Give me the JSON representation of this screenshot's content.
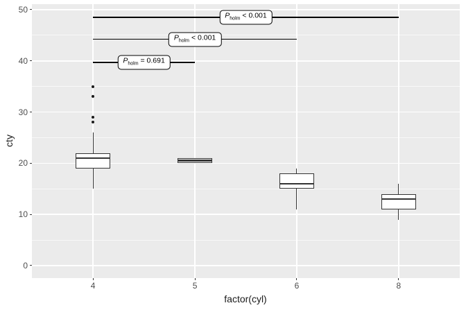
{
  "colors": {
    "page_bg": "#FFFFFF",
    "panel_bg": "#EBEBEB",
    "grid": "#FFFFFF",
    "box_stroke": "#333333",
    "box_fill": "#FFFFFF",
    "outlier": "#1A1A1A",
    "bracket": "#000000",
    "tick_label": "#4D4D4D",
    "axis_title": "#1A1A1A"
  },
  "chart_data": {
    "type": "boxplot",
    "title": "",
    "xlabel": "factor(cyl)",
    "ylabel": "cty",
    "categories": [
      "4",
      "5",
      "6",
      "8"
    ],
    "y_ticks": [
      0,
      10,
      20,
      30,
      40,
      50
    ],
    "y_minor_ticks": [
      5,
      15,
      25,
      35,
      45
    ],
    "ylim": [
      -2.44,
      51.08
    ],
    "grid": true,
    "legend": false,
    "series": [
      {
        "category": "4",
        "min": 15,
        "q1": 19,
        "median": 21,
        "q3": 22,
        "max": 26,
        "outliers": [
          28,
          29,
          33,
          35
        ]
      },
      {
        "category": "5",
        "min": 20,
        "q1": 20,
        "median": 20.5,
        "q3": 21,
        "max": 21,
        "outliers": []
      },
      {
        "category": "6",
        "min": 11,
        "q1": 15,
        "median": 16,
        "q3": 18,
        "max": 19,
        "outliers": []
      },
      {
        "category": "8",
        "min": 9,
        "q1": 11,
        "median": 13,
        "q3": 14,
        "max": 16,
        "outliers": []
      }
    ],
    "comparisons": [
      {
        "group1": "4",
        "group2": "5",
        "y": 39.7,
        "p_symbol": "P",
        "p_subscript": "holm",
        "p_text": " = 0.691"
      },
      {
        "group1": "4",
        "group2": "6",
        "y": 44.2,
        "p_symbol": "P",
        "p_subscript": "holm",
        "p_text": " < 0.001"
      },
      {
        "group1": "4",
        "group2": "8",
        "y": 48.5,
        "p_symbol": "P",
        "p_subscript": "holm",
        "p_text": " < 0.001"
      }
    ]
  }
}
